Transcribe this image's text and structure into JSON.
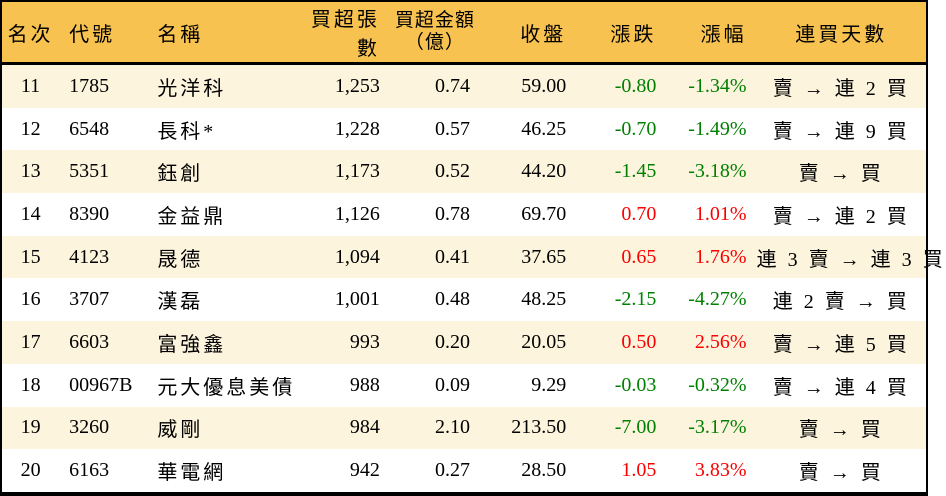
{
  "colors": {
    "header_bg": "#f7c24f",
    "row_alt_bg": "#fdf4dd",
    "row_bg": "#ffffff",
    "up_red": "#fa0000",
    "down_green": "#008000",
    "border_black": "#000000"
  },
  "table": {
    "columns": [
      {
        "id": "rank",
        "label": "名次"
      },
      {
        "id": "code",
        "label": "代號"
      },
      {
        "id": "name",
        "label": "名稱"
      },
      {
        "id": "volume",
        "label": "買超張數"
      },
      {
        "id": "amount",
        "label": "買超金額",
        "label_line2": "（億）"
      },
      {
        "id": "close",
        "label": "收盤"
      },
      {
        "id": "change",
        "label": "漲跌"
      },
      {
        "id": "change_pct",
        "label": "漲幅"
      },
      {
        "id": "streak",
        "label": "連買天數"
      }
    ],
    "rows": [
      {
        "rank": "11",
        "code": "1785",
        "name": "光洋科",
        "volume": "1,253",
        "amount": "0.74",
        "close": "59.00",
        "change": "-0.80",
        "change_pct": "-1.34%",
        "streak": "賣 → 連 2 買"
      },
      {
        "rank": "12",
        "code": "6548",
        "name": "長科*",
        "volume": "1,228",
        "amount": "0.57",
        "close": "46.25",
        "change": "-0.70",
        "change_pct": "-1.49%",
        "streak": "賣 → 連 9 買"
      },
      {
        "rank": "13",
        "code": "5351",
        "name": "鈺創",
        "volume": "1,173",
        "amount": "0.52",
        "close": "44.20",
        "change": "-1.45",
        "change_pct": "-3.18%",
        "streak": "賣 → 買"
      },
      {
        "rank": "14",
        "code": "8390",
        "name": "金益鼎",
        "volume": "1,126",
        "amount": "0.78",
        "close": "69.70",
        "change": "0.70",
        "change_pct": "1.01%",
        "streak": "賣 → 連 2 買"
      },
      {
        "rank": "15",
        "code": "4123",
        "name": "晟德",
        "volume": "1,094",
        "amount": "0.41",
        "close": "37.65",
        "change": "0.65",
        "change_pct": "1.76%",
        "streak": "連 3 賣 → 連 3 買"
      },
      {
        "rank": "16",
        "code": "3707",
        "name": "漢磊",
        "volume": "1,001",
        "amount": "0.48",
        "close": "48.25",
        "change": "-2.15",
        "change_pct": "-4.27%",
        "streak": "連 2 賣 → 買"
      },
      {
        "rank": "17",
        "code": "6603",
        "name": "富強鑫",
        "volume": "993",
        "amount": "0.20",
        "close": "20.05",
        "change": "0.50",
        "change_pct": "2.56%",
        "streak": "賣 → 連 5 買"
      },
      {
        "rank": "18",
        "code": "00967B",
        "name": "元大優息美債",
        "volume": "988",
        "amount": "0.09",
        "close": "9.29",
        "change": "-0.03",
        "change_pct": "-0.32%",
        "streak": "賣 → 連 4 買"
      },
      {
        "rank": "19",
        "code": "3260",
        "name": "威剛",
        "volume": "984",
        "amount": "2.10",
        "close": "213.50",
        "change": "-7.00",
        "change_pct": "-3.17%",
        "streak": "賣 → 買"
      },
      {
        "rank": "20",
        "code": "6163",
        "name": "華電網",
        "volume": "942",
        "amount": "0.27",
        "close": "28.50",
        "change": "1.05",
        "change_pct": "3.83%",
        "streak": "賣 → 買"
      }
    ]
  },
  "chart_data": {
    "type": "table",
    "title": "",
    "columns": [
      "名次",
      "代號",
      "名稱",
      "買超張數",
      "買超金額（億）",
      "收盤",
      "漲跌",
      "漲幅",
      "連買天數"
    ],
    "rows": [
      [
        11,
        "1785",
        "光洋科",
        1253,
        0.74,
        59.0,
        -0.8,
        "-1.34%",
        "賣 → 連 2 買"
      ],
      [
        12,
        "6548",
        "長科*",
        1228,
        0.57,
        46.25,
        -0.7,
        "-1.49%",
        "賣 → 連 9 買"
      ],
      [
        13,
        "5351",
        "鈺創",
        1173,
        0.52,
        44.2,
        -1.45,
        "-3.18%",
        "賣 → 買"
      ],
      [
        14,
        "8390",
        "金益鼎",
        1126,
        0.78,
        69.7,
        0.7,
        "1.01%",
        "賣 → 連 2 買"
      ],
      [
        15,
        "4123",
        "晟德",
        1094,
        0.41,
        37.65,
        0.65,
        "1.76%",
        "連 3 賣 → 連 3 買"
      ],
      [
        16,
        "3707",
        "漢磊",
        1001,
        0.48,
        48.25,
        -2.15,
        "-4.27%",
        "連 2 賣 → 買"
      ],
      [
        17,
        "6603",
        "富強鑫",
        993,
        0.2,
        20.05,
        0.5,
        "2.56%",
        "賣 → 連 5 買"
      ],
      [
        18,
        "00967B",
        "元大優息美債",
        988,
        0.09,
        9.29,
        -0.03,
        "-0.32%",
        "賣 → 連 4 買"
      ],
      [
        19,
        "3260",
        "威剛",
        984,
        2.1,
        213.5,
        -7.0,
        "-3.17%",
        "賣 → 買"
      ],
      [
        20,
        "6163",
        "華電網",
        942,
        0.27,
        28.5,
        1.05,
        "3.83%",
        "賣 → 買"
      ]
    ],
    "notes": "Positive change shown in red, negative in green (Taiwan market convention). Alternating cream/white row stripes, gold header."
  }
}
